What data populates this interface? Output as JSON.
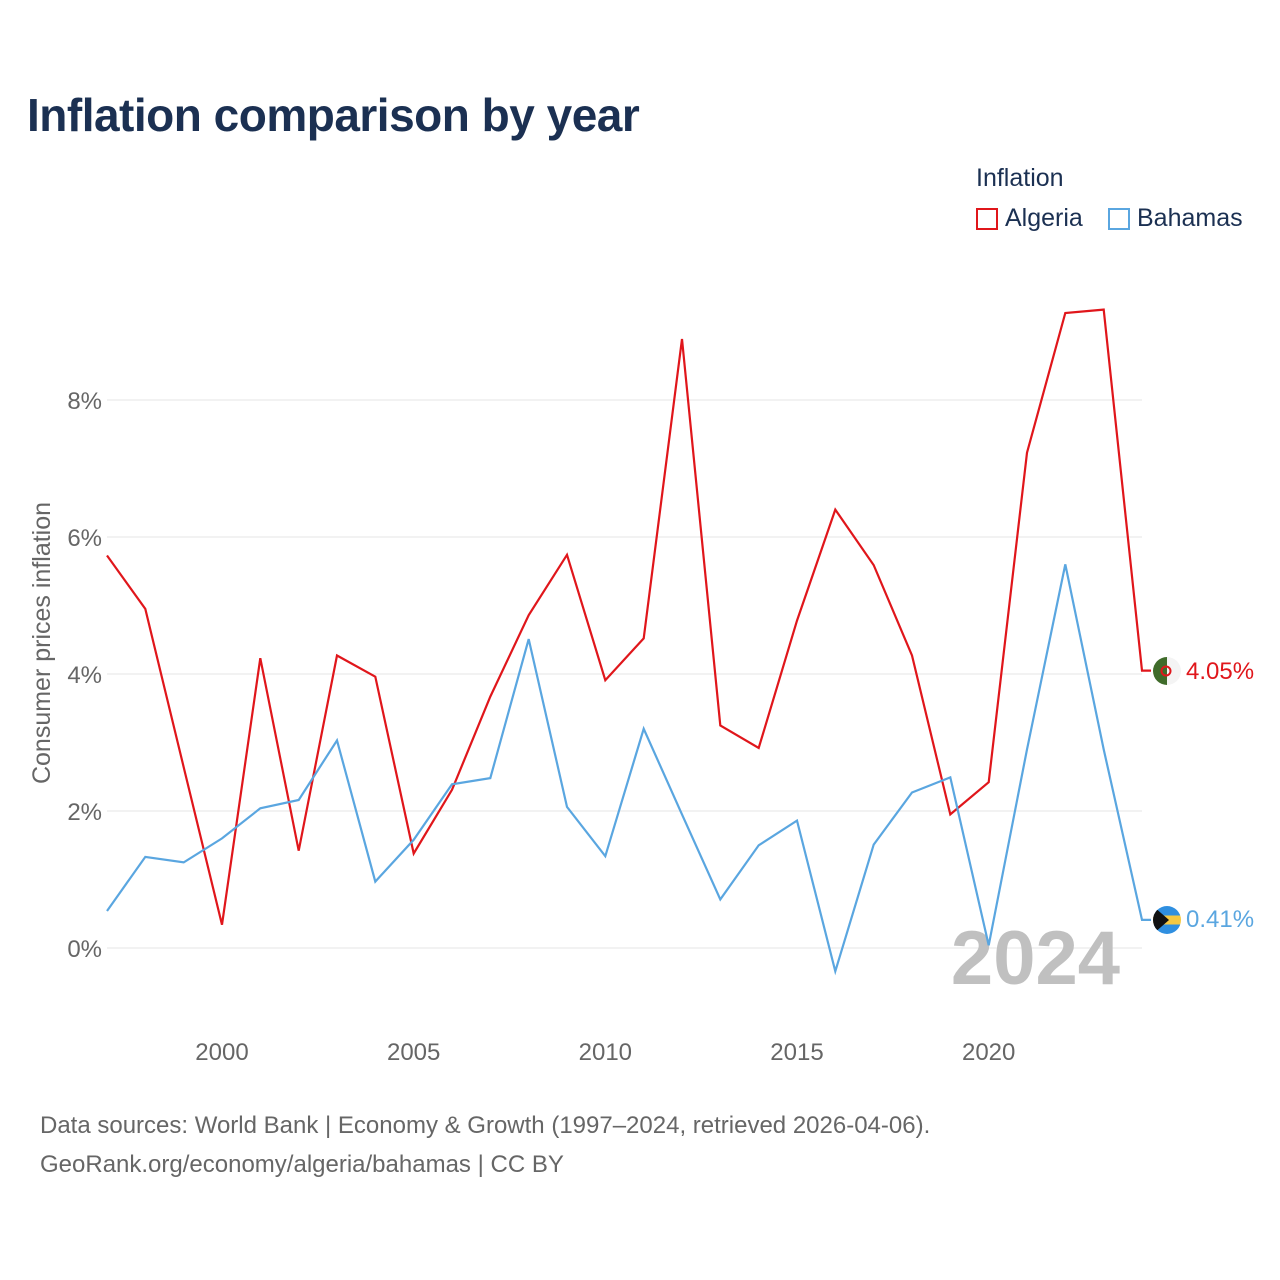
{
  "title": "Inflation comparison by year",
  "legend": {
    "title": "Inflation",
    "items": [
      {
        "label": "Algeria",
        "color": "#e0161b"
      },
      {
        "label": "Bahamas",
        "color": "#5aa6e0"
      }
    ]
  },
  "source": {
    "line1": "Data sources: World Bank | Economy & Growth (1997–2024, retrieved 2026-04-06).",
    "line2": "GeoRank.org/economy/algeria/bahamas | CC BY"
  },
  "chart_data": {
    "type": "line",
    "title": "Inflation comparison by year",
    "xlabel": "",
    "ylabel": "Consumer prices inflation",
    "xlim": [
      1997,
      2024
    ],
    "ylim": [
      -1.0,
      10.0
    ],
    "x_ticks": [
      2000,
      2005,
      2010,
      2015,
      2020
    ],
    "y_ticks": [
      0,
      2,
      4,
      6,
      8
    ],
    "y_tick_labels": [
      "0%",
      "2%",
      "4%",
      "6%",
      "8%"
    ],
    "grid": true,
    "legend_position": "top-right",
    "year_watermark": "2024",
    "x": [
      1997,
      1998,
      1999,
      2000,
      2001,
      2002,
      2003,
      2004,
      2005,
      2006,
      2007,
      2008,
      2009,
      2010,
      2011,
      2012,
      2013,
      2014,
      2015,
      2016,
      2017,
      2018,
      2019,
      2020,
      2021,
      2022,
      2023,
      2024
    ],
    "series": [
      {
        "name": "Algeria",
        "color": "#e0161b",
        "end_label": "4.05%",
        "values": [
          5.73,
          4.95,
          2.64,
          0.34,
          4.23,
          1.42,
          4.27,
          3.96,
          1.38,
          2.31,
          3.67,
          4.86,
          5.74,
          3.91,
          4.52,
          8.89,
          3.25,
          2.92,
          4.78,
          6.4,
          5.59,
          4.27,
          1.95,
          2.42,
          7.23,
          9.27,
          9.32,
          4.05
        ]
      },
      {
        "name": "Bahamas",
        "color": "#5aa6e0",
        "end_label": "0.41%",
        "values": [
          0.54,
          1.33,
          1.25,
          1.6,
          2.04,
          2.16,
          3.03,
          0.97,
          1.58,
          2.39,
          2.48,
          4.51,
          2.06,
          1.34,
          3.2,
          1.95,
          0.71,
          1.5,
          1.86,
          -0.34,
          1.51,
          2.27,
          2.49,
          0.04,
          2.9,
          5.6,
          2.9,
          0.41
        ]
      }
    ]
  }
}
